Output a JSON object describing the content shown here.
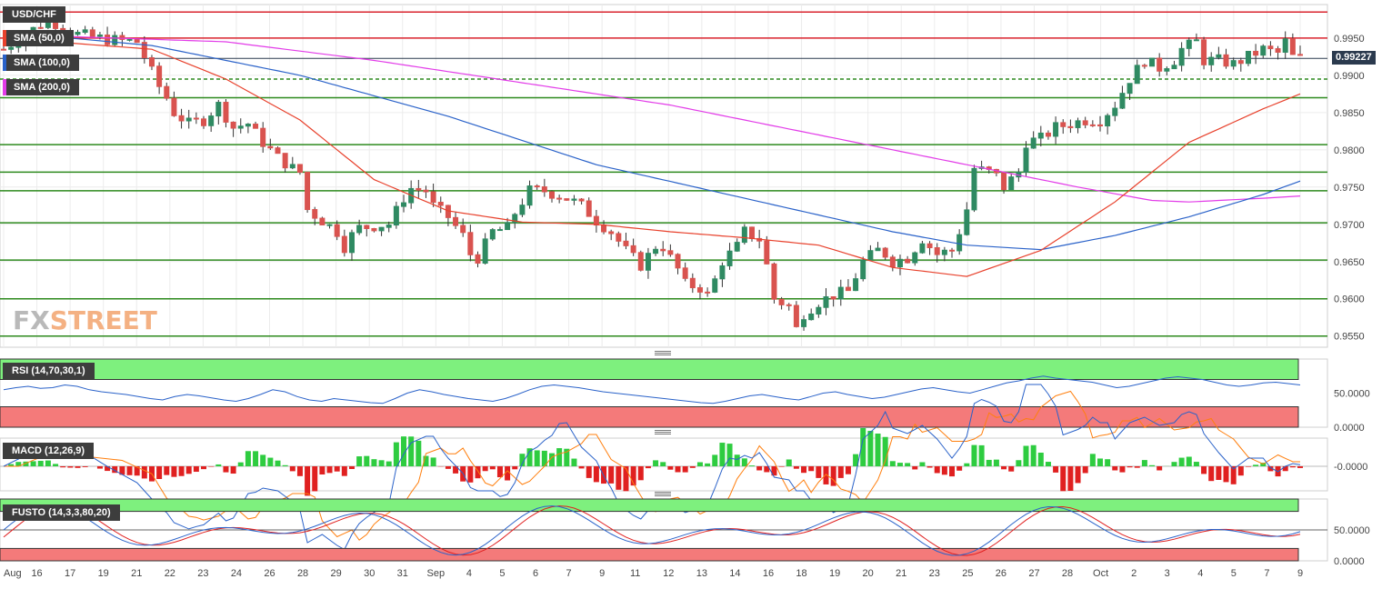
{
  "chart_data": [
    {
      "type": "candlestick",
      "title": "USD/CHF",
      "indicators": [
        {
          "name": "SMA (50,0)",
          "color": "#e8412c"
        },
        {
          "name": "SMA (100,0)",
          "color": "#2a62c9"
        },
        {
          "name": "SMA (200,0)",
          "color": "#e23be8"
        }
      ],
      "ylim": [
        0.9535,
        0.9995
      ],
      "yticks": [
        "0.9550",
        "0.9600",
        "0.9650",
        "0.9700",
        "0.9750",
        "0.9800",
        "0.9850",
        "0.9900",
        "0.9950"
      ],
      "ytick_values": [
        0.955,
        0.96,
        0.965,
        0.97,
        0.975,
        0.98,
        0.985,
        0.99,
        0.995
      ],
      "last_price": "0.99227",
      "last_price_value": 0.99227,
      "x_labels": [
        "Aug",
        "16",
        "17",
        "19",
        "21",
        "22",
        "23",
        "24",
        "26",
        "28",
        "29",
        "30",
        "31",
        "Sep",
        "4",
        "5",
        "6",
        "7",
        "9",
        "11",
        "12",
        "13",
        "14",
        "16",
        "18",
        "19",
        "20",
        "21",
        "23",
        "25",
        "26",
        "27",
        "28",
        "Oct",
        "2",
        "3",
        "4",
        "5",
        "7",
        "9"
      ],
      "horizontal_levels": [
        {
          "value": 0.9985,
          "color": "#d9232d",
          "style": "solid"
        },
        {
          "value": 0.995,
          "color": "#d9232d",
          "style": "solid"
        },
        {
          "value": 0.9895,
          "color": "#2d8a1e",
          "style": "dashed"
        },
        {
          "value": 0.987,
          "color": "#2d8a1e",
          "style": "solid"
        },
        {
          "value": 0.9807,
          "color": "#2d8a1e",
          "style": "solid"
        },
        {
          "value": 0.977,
          "color": "#2d8a1e",
          "style": "solid"
        },
        {
          "value": 0.9745,
          "color": "#2d8a1e",
          "style": "solid"
        },
        {
          "value": 0.9702,
          "color": "#2d8a1e",
          "style": "solid"
        },
        {
          "value": 0.9652,
          "color": "#2d8a1e",
          "style": "solid"
        },
        {
          "value": 0.96,
          "color": "#2d8a1e",
          "style": "solid"
        },
        {
          "value": 0.955,
          "color": "#2d8a1e",
          "style": "solid"
        }
      ],
      "close_path": [
        [
          0,
          0.9935
        ],
        [
          6,
          0.9975
        ],
        [
          10,
          0.9955
        ],
        [
          14,
          0.9948
        ],
        [
          18,
          0.9945
        ],
        [
          21,
          0.9885
        ],
        [
          22,
          0.987
        ],
        [
          23,
          0.985
        ],
        [
          25,
          0.9835
        ],
        [
          27,
          0.984
        ],
        [
          29,
          0.986
        ],
        [
          30,
          0.9845
        ],
        [
          31,
          0.983
        ],
        [
          33,
          0.9835
        ],
        [
          35,
          0.981
        ],
        [
          37,
          0.979
        ],
        [
          39,
          0.9775
        ],
        [
          40,
          0.977
        ],
        [
          41,
          0.972
        ],
        [
          43,
          0.9705
        ],
        [
          45,
          0.969
        ],
        [
          46,
          0.967
        ],
        [
          47,
          0.9685
        ],
        [
          48,
          0.9695
        ],
        [
          50,
          0.9698
        ],
        [
          52,
          0.97
        ],
        [
          54,
          0.9735
        ],
        [
          55,
          0.9748
        ],
        [
          57,
          0.9745
        ],
        [
          58,
          0.9725
        ],
        [
          60,
          0.971
        ],
        [
          62,
          0.9685
        ],
        [
          63,
          0.966
        ],
        [
          64,
          0.9655
        ],
        [
          66,
          0.969
        ],
        [
          68,
          0.9695
        ],
        [
          69,
          0.9715
        ],
        [
          71,
          0.9745
        ],
        [
          73,
          0.9745
        ],
        [
          76,
          0.9735
        ],
        [
          78,
          0.9725
        ],
        [
          80,
          0.9705
        ],
        [
          82,
          0.969
        ],
        [
          84,
          0.9665
        ],
        [
          86,
          0.9645
        ],
        [
          88,
          0.967
        ],
        [
          89,
          0.967
        ],
        [
          91,
          0.964
        ],
        [
          92,
          0.962
        ],
        [
          94,
          0.9615
        ],
        [
          95,
          0.9605
        ],
        [
          96,
          0.9625
        ],
        [
          97,
          0.965
        ],
        [
          99,
          0.967
        ],
        [
          100,
          0.969
        ],
        [
          102,
          0.968
        ],
        [
          103,
          0.9645
        ],
        [
          104,
          0.96
        ],
        [
          106,
          0.959
        ],
        [
          107,
          0.956
        ],
        [
          108,
          0.958
        ],
        [
          110,
          0.9595
        ],
        [
          112,
          0.9605
        ],
        [
          114,
          0.961
        ],
        [
          115,
          0.963
        ],
        [
          116,
          0.965
        ],
        [
          118,
          0.9665
        ],
        [
          119,
          0.966
        ],
        [
          120,
          0.965
        ],
        [
          122,
          0.9655
        ],
        [
          124,
          0.968
        ],
        [
          126,
          0.966
        ],
        [
          128,
          0.9665
        ],
        [
          129,
          0.969
        ],
        [
          130,
          0.972
        ],
        [
          131,
          0.9775
        ],
        [
          133,
          0.977
        ],
        [
          134,
          0.9765
        ],
        [
          135,
          0.975
        ],
        [
          137,
          0.977
        ],
        [
          138,
          0.981
        ],
        [
          140,
          0.9815
        ],
        [
          142,
          0.983
        ],
        [
          144,
          0.9835
        ],
        [
          146,
          0.984
        ],
        [
          148,
          0.984
        ],
        [
          150,
          0.986
        ],
        [
          152,
          0.9895
        ],
        [
          154,
          0.992
        ],
        [
          156,
          0.991
        ],
        [
          158,
          0.992
        ],
        [
          159,
          0.9935
        ],
        [
          161,
          0.9945
        ],
        [
          162,
          0.992
        ],
        [
          164,
          0.992
        ],
        [
          166,
          0.9915
        ],
        [
          168,
          0.9925
        ],
        [
          170,
          0.9935
        ],
        [
          172,
          0.993
        ],
        [
          173,
          0.9945
        ],
        [
          174,
          0.9925
        ],
        [
          175,
          0.9923
        ]
      ],
      "sma50": [
        [
          0,
          0.995
        ],
        [
          20,
          0.9935
        ],
        [
          30,
          0.9895
        ],
        [
          40,
          0.984
        ],
        [
          50,
          0.976
        ],
        [
          60,
          0.9718
        ],
        [
          70,
          0.9703
        ],
        [
          80,
          0.97
        ],
        [
          90,
          0.969
        ],
        [
          100,
          0.9682
        ],
        [
          110,
          0.9672
        ],
        [
          120,
          0.9642
        ],
        [
          130,
          0.963
        ],
        [
          140,
          0.9665
        ],
        [
          150,
          0.973
        ],
        [
          160,
          0.981
        ],
        [
          170,
          0.9855
        ],
        [
          175,
          0.9875
        ]
      ],
      "sma100": [
        [
          0,
          0.9958
        ],
        [
          20,
          0.994
        ],
        [
          40,
          0.99
        ],
        [
          60,
          0.9845
        ],
        [
          80,
          0.978
        ],
        [
          100,
          0.9735
        ],
        [
          120,
          0.969
        ],
        [
          130,
          0.9672
        ],
        [
          140,
          0.9666
        ],
        [
          150,
          0.9685
        ],
        [
          160,
          0.971
        ],
        [
          170,
          0.974
        ],
        [
          175,
          0.9758
        ]
      ],
      "sma200": [
        [
          0,
          0.9955
        ],
        [
          30,
          0.9945
        ],
        [
          50,
          0.992
        ],
        [
          70,
          0.989
        ],
        [
          90,
          0.986
        ],
        [
          110,
          0.982
        ],
        [
          130,
          0.978
        ],
        [
          145,
          0.975
        ],
        [
          155,
          0.9732
        ],
        [
          160,
          0.973
        ],
        [
          170,
          0.9735
        ],
        [
          175,
          0.9738
        ]
      ]
    },
    {
      "type": "line",
      "title": "RSI (14,70,30,1)",
      "yticks": [
        "50.0000",
        "0.0000"
      ],
      "ylim": [
        0,
        100
      ],
      "bands": {
        "overbought": 70,
        "oversold": 30
      },
      "series": [
        {
          "color": "#2a62c9",
          "values": [
            55,
            58,
            60,
            57,
            58,
            62,
            60,
            55,
            52,
            50,
            48,
            45,
            42,
            40,
            45,
            48,
            46,
            43,
            40,
            38,
            42,
            48,
            55,
            52,
            45,
            40,
            38,
            42,
            40,
            38,
            36,
            35,
            42,
            50,
            55,
            52,
            48,
            45,
            42,
            40,
            38,
            42,
            48,
            55,
            60,
            62,
            60,
            58,
            55,
            52,
            50,
            48,
            46,
            44,
            42,
            40,
            38,
            36,
            35,
            38,
            42,
            46,
            48,
            45,
            42,
            40,
            45,
            50,
            52,
            48,
            45,
            42,
            44,
            48,
            52,
            56,
            58,
            55,
            52,
            50,
            55,
            60,
            65,
            68,
            72,
            75,
            72,
            70,
            68,
            66,
            62,
            58,
            60,
            64,
            68,
            72,
            74,
            72,
            70,
            66,
            62,
            60,
            62,
            65,
            66,
            64,
            62
          ]
        }
      ]
    },
    {
      "type": "bar",
      "title": "MACD (12,26,9)",
      "yticks": [
        "-0.0000"
      ]
    },
    {
      "type": "line",
      "title": "FUSTO (14,3,3,80,20)",
      "yticks": [
        "50.0000",
        "0.0000"
      ],
      "ylim": [
        0,
        100
      ],
      "bands": {
        "overbought": 80,
        "oversold": 20
      }
    }
  ],
  "page": {
    "logo_fx": "FX",
    "logo_street": "STREET"
  }
}
